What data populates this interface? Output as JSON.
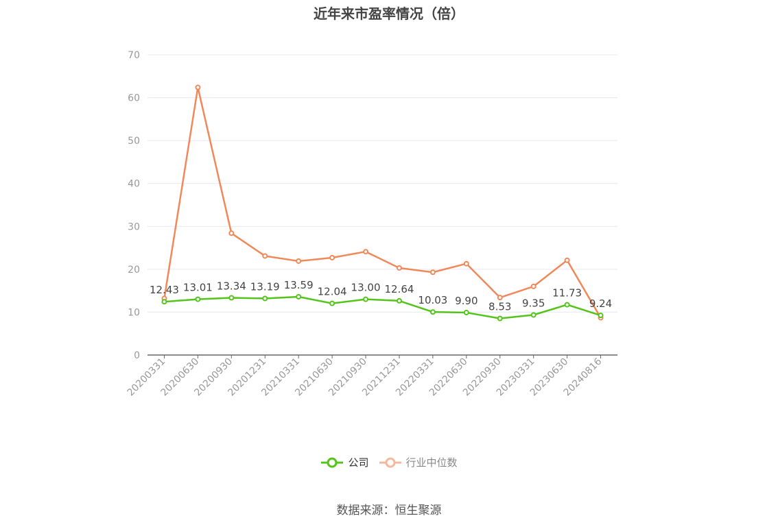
{
  "title": "近年来市盈率情况（倍）",
  "source": "数据来源：恒生聚源",
  "chart_data": {
    "type": "line",
    "title": "近年来市盈率情况（倍）",
    "categories": [
      "20200331",
      "20200630",
      "20200930",
      "20201231",
      "20210331",
      "20210630",
      "20210930",
      "20211231",
      "20220331",
      "20220630",
      "20220930",
      "20230331",
      "20230630",
      "20240816"
    ],
    "ylim": [
      0,
      70
    ],
    "yticks": [
      0,
      10,
      20,
      30,
      40,
      50,
      60,
      70
    ],
    "grid": true,
    "legend_position": "bottom",
    "series": [
      {
        "name": "公司",
        "color": "#52c41a",
        "values": [
          12.43,
          13.01,
          13.34,
          13.19,
          13.59,
          12.04,
          13.0,
          12.64,
          10.03,
          9.9,
          8.53,
          9.35,
          11.73,
          9.24
        ],
        "labels": [
          "12.43",
          "13.01",
          "13.34",
          "13.19",
          "13.59",
          "12.04",
          "13.00",
          "12.64",
          "10.03",
          "9.90",
          "8.53",
          "9.35",
          "11.73",
          "9.24"
        ]
      },
      {
        "name": "行业中位数",
        "color": "#f0885a",
        "values": [
          13.2,
          62.4,
          28.4,
          23.1,
          21.9,
          22.7,
          24.1,
          20.3,
          19.3,
          21.3,
          13.4,
          16.0,
          22.1,
          8.7
        ]
      }
    ]
  }
}
